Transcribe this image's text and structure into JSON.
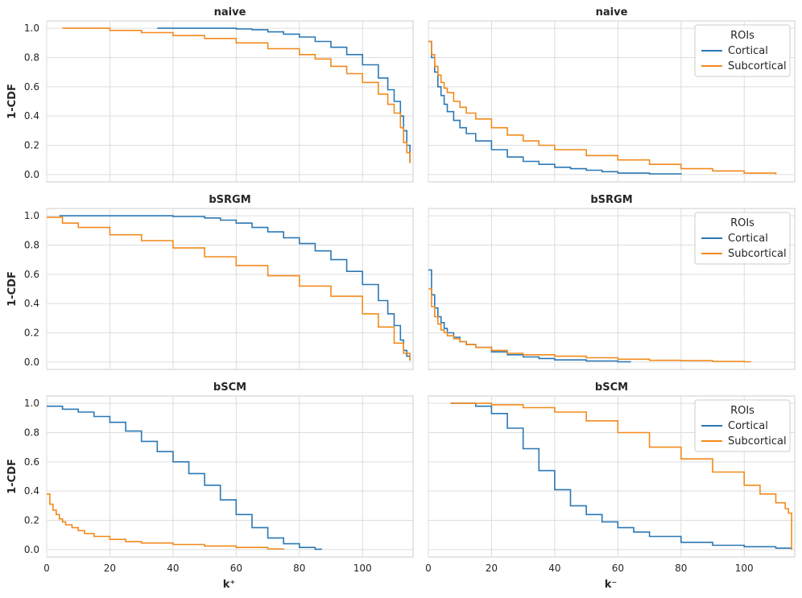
{
  "colors": {
    "Cortical": "#2a78b5",
    "Subcortical": "#f28a1c"
  },
  "legend": {
    "title": "ROIs",
    "items": [
      "Cortical",
      "Subcortical"
    ]
  },
  "chart_data": {
    "type": "line",
    "style": "step",
    "x_ticks": [
      0,
      20,
      40,
      60,
      80,
      100
    ],
    "y_ticks": [
      0.0,
      0.2,
      0.4,
      0.6,
      0.8,
      1.0
    ],
    "y_tick_labels": [
      "0.0",
      "0.2",
      "0.4",
      "0.6",
      "0.8",
      "1.0"
    ],
    "ylabel": "1-CDF",
    "xlabels": [
      "k⁺",
      "k⁻"
    ],
    "xlim": [
      0,
      116
    ],
    "ylim": [
      -0.05,
      1.05
    ],
    "legend_placement": "top-right",
    "panels": [
      {
        "title": "naive",
        "series": [
          {
            "name": "Cortical",
            "x": [
              35,
              50,
              60,
              65,
              70,
              75,
              80,
              85,
              90,
              95,
              100,
              105,
              108,
              110,
              112,
              113,
              114,
              115
            ],
            "y": [
              1.0,
              1.0,
              0.995,
              0.99,
              0.975,
              0.96,
              0.94,
              0.91,
              0.87,
              0.82,
              0.75,
              0.66,
              0.58,
              0.5,
              0.4,
              0.3,
              0.2,
              0.08
            ]
          },
          {
            "name": "Subcortical",
            "x": [
              5,
              20,
              30,
              40,
              50,
              60,
              70,
              80,
              85,
              90,
              95,
              100,
              105,
              108,
              110,
              112,
              113,
              114,
              115
            ],
            "y": [
              1.0,
              0.985,
              0.97,
              0.95,
              0.93,
              0.9,
              0.86,
              0.82,
              0.79,
              0.74,
              0.69,
              0.63,
              0.55,
              0.48,
              0.42,
              0.32,
              0.22,
              0.15,
              0.08
            ]
          }
        ]
      },
      {
        "title": "naive",
        "legend": true,
        "series": [
          {
            "name": "Cortical",
            "x": [
              0,
              1,
              2,
              3,
              4,
              5,
              6,
              8,
              10,
              12,
              15,
              20,
              25,
              30,
              35,
              40,
              45,
              50,
              55,
              60,
              70,
              80
            ],
            "y": [
              0.91,
              0.8,
              0.7,
              0.6,
              0.54,
              0.48,
              0.43,
              0.37,
              0.32,
              0.28,
              0.23,
              0.17,
              0.12,
              0.09,
              0.07,
              0.05,
              0.04,
              0.03,
              0.02,
              0.01,
              0.005,
              0.0
            ]
          },
          {
            "name": "Subcortical",
            "x": [
              0,
              1,
              2,
              3,
              4,
              5,
              6,
              8,
              10,
              12,
              15,
              20,
              25,
              30,
              35,
              40,
              50,
              60,
              70,
              80,
              90,
              100,
              110
            ],
            "y": [
              0.91,
              0.82,
              0.74,
              0.68,
              0.63,
              0.59,
              0.56,
              0.5,
              0.46,
              0.42,
              0.38,
              0.32,
              0.27,
              0.23,
              0.2,
              0.17,
              0.13,
              0.1,
              0.07,
              0.04,
              0.025,
              0.01,
              0.0
            ]
          }
        ]
      },
      {
        "title": "bSRGM",
        "series": [
          {
            "name": "Cortical",
            "x": [
              4,
              20,
              30,
              40,
              50,
              55,
              60,
              65,
              70,
              75,
              80,
              85,
              90,
              95,
              100,
              105,
              108,
              110,
              112,
              113,
              114,
              115
            ],
            "y": [
              1.0,
              1.0,
              1.0,
              0.995,
              0.985,
              0.97,
              0.95,
              0.92,
              0.89,
              0.85,
              0.81,
              0.76,
              0.7,
              0.62,
              0.53,
              0.42,
              0.33,
              0.25,
              0.15,
              0.08,
              0.04,
              0.01
            ]
          },
          {
            "name": "Subcortical",
            "x": [
              0,
              5,
              10,
              20,
              30,
              40,
              50,
              60,
              70,
              80,
              90,
              100,
              105,
              110,
              113,
              115
            ],
            "y": [
              0.99,
              0.95,
              0.92,
              0.87,
              0.83,
              0.78,
              0.72,
              0.66,
              0.59,
              0.52,
              0.45,
              0.33,
              0.24,
              0.13,
              0.06,
              0.01
            ]
          }
        ]
      },
      {
        "title": "bSRGM",
        "legend": true,
        "series": [
          {
            "name": "Cortical",
            "x": [
              0,
              1,
              2,
              3,
              4,
              5,
              6,
              8,
              10,
              12,
              15,
              20,
              25,
              30,
              35,
              40,
              50,
              60,
              64
            ],
            "y": [
              0.63,
              0.46,
              0.37,
              0.31,
              0.27,
              0.23,
              0.2,
              0.17,
              0.14,
              0.12,
              0.1,
              0.07,
              0.05,
              0.035,
              0.025,
              0.015,
              0.008,
              0.002,
              0.0
            ]
          },
          {
            "name": "Subcortical",
            "x": [
              0,
              1,
              2,
              3,
              4,
              5,
              6,
              8,
              10,
              12,
              15,
              20,
              25,
              30,
              40,
              50,
              60,
              70,
              80,
              90,
              100,
              102
            ],
            "y": [
              0.5,
              0.38,
              0.31,
              0.26,
              0.22,
              0.2,
              0.18,
              0.16,
              0.14,
              0.12,
              0.1,
              0.08,
              0.06,
              0.05,
              0.04,
              0.03,
              0.02,
              0.012,
              0.01,
              0.005,
              0.002,
              0.0
            ]
          }
        ]
      },
      {
        "title": "bSCM",
        "series": [
          {
            "name": "Cortical",
            "x": [
              0,
              5,
              10,
              15,
              20,
              25,
              30,
              35,
              40,
              45,
              50,
              55,
              60,
              65,
              70,
              75,
              80,
              85,
              87
            ],
            "y": [
              0.98,
              0.96,
              0.94,
              0.91,
              0.87,
              0.81,
              0.74,
              0.67,
              0.6,
              0.52,
              0.44,
              0.34,
              0.24,
              0.15,
              0.08,
              0.04,
              0.015,
              0.003,
              0.0
            ]
          },
          {
            "name": "Subcortical",
            "x": [
              0,
              1,
              2,
              3,
              4,
              5,
              6,
              8,
              10,
              12,
              15,
              20,
              25,
              30,
              40,
              50,
              60,
              70,
              75
            ],
            "y": [
              0.38,
              0.31,
              0.27,
              0.24,
              0.21,
              0.19,
              0.17,
              0.15,
              0.13,
              0.11,
              0.09,
              0.07,
              0.055,
              0.045,
              0.035,
              0.025,
              0.015,
              0.005,
              0.0
            ]
          }
        ]
      },
      {
        "title": "bSCM",
        "legend": true,
        "series": [
          {
            "name": "Cortical",
            "x": [
              7,
              10,
              15,
              20,
              25,
              30,
              35,
              40,
              45,
              50,
              55,
              60,
              65,
              70,
              80,
              90,
              100,
              110,
              115
            ],
            "y": [
              1.0,
              1.0,
              0.98,
              0.93,
              0.83,
              0.69,
              0.54,
              0.41,
              0.3,
              0.24,
              0.19,
              0.15,
              0.12,
              0.09,
              0.05,
              0.03,
              0.02,
              0.01,
              0.0
            ]
          },
          {
            "name": "Subcortical",
            "x": [
              7,
              20,
              30,
              40,
              50,
              60,
              70,
              80,
              90,
              100,
              105,
              110,
              113,
              114,
              115
            ],
            "y": [
              1.0,
              0.99,
              0.97,
              0.94,
              0.88,
              0.8,
              0.7,
              0.62,
              0.53,
              0.44,
              0.38,
              0.32,
              0.28,
              0.25,
              0.0
            ]
          }
        ]
      }
    ]
  }
}
